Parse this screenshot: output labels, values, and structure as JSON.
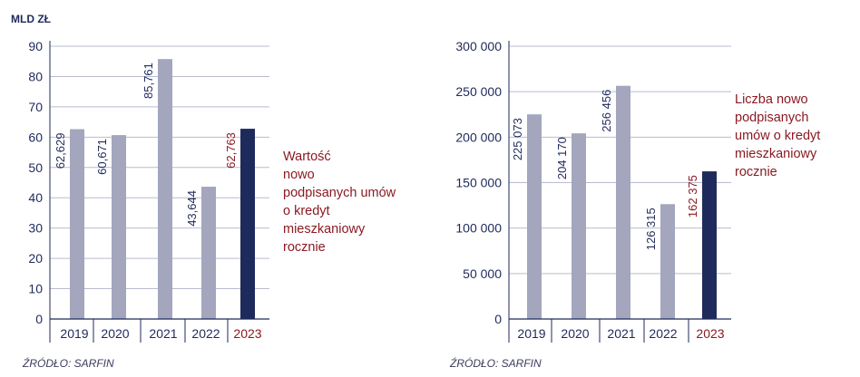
{
  "chart_data": [
    {
      "type": "bar",
      "unit_label": "MLD ZŁ",
      "categories": [
        "2019",
        "2020",
        "2021",
        "2022",
        "2023"
      ],
      "values": [
        62.629,
        60.671,
        85.761,
        43.644,
        62.763
      ],
      "value_labels": [
        "62,629",
        "60,671",
        "85,761",
        "43,644",
        "62,763"
      ],
      "y_ticks": [
        "0",
        "10",
        "20",
        "30",
        "40",
        "50",
        "60",
        "70",
        "80",
        "90"
      ],
      "ylim": [
        0,
        90
      ],
      "grid": true,
      "highlight_index": 4,
      "annotation": [
        "Wartość",
        "nowo",
        "podpisanych umów",
        "o kredyt",
        "mieszkaniowy",
        "rocznie"
      ],
      "source": "ŹRÓDŁO: SARFIN"
    },
    {
      "type": "bar",
      "categories": [
        "2019",
        "2020",
        "2021",
        "2022",
        "2023"
      ],
      "values": [
        225073,
        204170,
        256456,
        126315,
        162375
      ],
      "value_labels": [
        "225 073",
        "204 170",
        "256 456",
        "126 315",
        "162 375"
      ],
      "y_ticks": [
        "0",
        "50 000",
        "100 000",
        "150 000",
        "200 000",
        "250 000",
        "300 000"
      ],
      "ylim": [
        0,
        300000
      ],
      "grid": true,
      "highlight_index": 4,
      "annotation": [
        "Liczba nowo",
        "podpisanych",
        "umów o kredyt",
        "mieszkaniowy",
        "rocznie"
      ],
      "source": "ŹRÓDŁO: SARFIN"
    }
  ],
  "colors": {
    "bar": "#a3a6bc",
    "highlight_bar": "#1f2a5c",
    "axis": "#1f2a5c",
    "grid": "#b9bcd0",
    "annotation": "#8a1a22",
    "label": "#1f2a5c"
  }
}
